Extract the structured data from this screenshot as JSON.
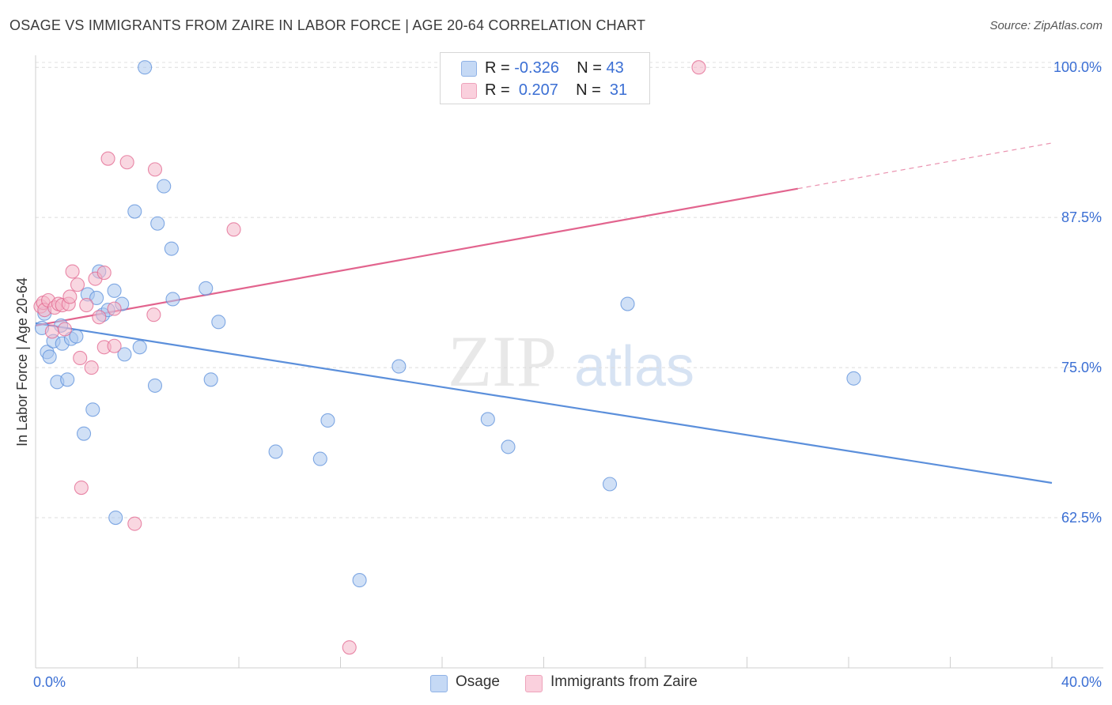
{
  "header": {
    "title": "OSAGE VS IMMIGRANTS FROM ZAIRE IN LABOR FORCE | AGE 20-64 CORRELATION CHART",
    "source": "Source: ZipAtlas.com"
  },
  "watermark": {
    "zip": "ZIP",
    "atlas": "atlas"
  },
  "legend": {
    "rows": [
      {
        "r_label": "R =",
        "r_value": "-0.326",
        "n_label": "N =",
        "n_value": "43",
        "color": "#a9c6ef"
      },
      {
        "r_label": "R =",
        "r_value": "0.207",
        "n_label": "N =",
        "n_value": "31",
        "color": "#f4b6c9"
      }
    ]
  },
  "bottom_legend": [
    {
      "label": "Osage",
      "color": "#a9c6ef"
    },
    {
      "label": "Immigrants from Zaire",
      "color": "#f4b6c9"
    }
  ],
  "chart_data": {
    "type": "scatter",
    "title": "OSAGE VS IMMIGRANTS FROM ZAIRE IN LABOR FORCE | AGE 20-64 CORRELATION CHART",
    "xlabel": "",
    "ylabel": "In Labor Force | Age 20-64",
    "xlim": [
      0,
      40
    ],
    "ylim": [
      50,
      101
    ],
    "x_tick_labels": [
      "0.0%",
      "40.0%"
    ],
    "y_ticks": [
      62.5,
      75.0,
      87.5,
      100.0
    ],
    "y_tick_labels": [
      "62.5%",
      "75.0%",
      "87.5%",
      "100.0%"
    ],
    "grid": true,
    "series": [
      {
        "name": "Osage",
        "color": "#5b8fdb",
        "fill": "#a9c6ef",
        "points": [
          [
            0.25,
            78.3
          ],
          [
            0.35,
            79.5
          ],
          [
            0.45,
            76.3
          ],
          [
            0.55,
            75.9
          ],
          [
            0.7,
            77.2
          ],
          [
            0.85,
            73.8
          ],
          [
            1.0,
            78.5
          ],
          [
            1.05,
            77.0
          ],
          [
            1.25,
            74.0
          ],
          [
            1.4,
            77.4
          ],
          [
            1.6,
            77.6
          ],
          [
            1.9,
            69.5
          ],
          [
            2.05,
            81.1
          ],
          [
            2.25,
            71.5
          ],
          [
            2.4,
            80.8
          ],
          [
            2.5,
            83.0
          ],
          [
            2.65,
            79.4
          ],
          [
            2.85,
            79.8
          ],
          [
            3.1,
            81.4
          ],
          [
            3.15,
            62.5
          ],
          [
            3.4,
            80.3
          ],
          [
            3.5,
            76.1
          ],
          [
            3.9,
            88.0
          ],
          [
            4.1,
            76.7
          ],
          [
            4.3,
            100.0
          ],
          [
            4.7,
            73.5
          ],
          [
            4.8,
            87.0
          ],
          [
            5.05,
            90.1
          ],
          [
            5.35,
            84.9
          ],
          [
            5.4,
            80.7
          ],
          [
            6.7,
            81.6
          ],
          [
            6.9,
            74.0
          ],
          [
            7.2,
            78.8
          ],
          [
            9.45,
            68.0
          ],
          [
            11.2,
            67.4
          ],
          [
            11.5,
            70.6
          ],
          [
            12.75,
            57.3
          ],
          [
            14.3,
            75.1
          ],
          [
            17.8,
            70.7
          ],
          [
            18.6,
            68.4
          ],
          [
            22.6,
            65.3
          ],
          [
            23.3,
            80.3
          ],
          [
            32.2,
            74.1
          ]
        ],
        "trend": {
          "x": [
            0,
            40
          ],
          "y": [
            78.7,
            65.4
          ]
        }
      },
      {
        "name": "Immigrants from Zaire",
        "color": "#e2648e",
        "fill": "#f4b6c9",
        "points": [
          [
            0.2,
            80.1
          ],
          [
            0.3,
            80.4
          ],
          [
            0.35,
            79.8
          ],
          [
            0.5,
            80.6
          ],
          [
            0.65,
            78.0
          ],
          [
            0.75,
            80.0
          ],
          [
            0.9,
            80.3
          ],
          [
            1.05,
            80.2
          ],
          [
            1.15,
            78.2
          ],
          [
            1.3,
            80.3
          ],
          [
            1.35,
            80.9
          ],
          [
            1.45,
            83.0
          ],
          [
            1.65,
            81.9
          ],
          [
            1.75,
            75.8
          ],
          [
            1.8,
            65.0
          ],
          [
            2.0,
            80.2
          ],
          [
            2.2,
            75.0
          ],
          [
            2.35,
            82.4
          ],
          [
            2.5,
            79.2
          ],
          [
            2.7,
            82.9
          ],
          [
            2.7,
            76.7
          ],
          [
            2.85,
            92.4
          ],
          [
            3.1,
            79.9
          ],
          [
            3.1,
            76.8
          ],
          [
            3.6,
            92.1
          ],
          [
            3.9,
            62.0
          ],
          [
            4.65,
            79.4
          ],
          [
            4.7,
            91.5
          ],
          [
            7.8,
            86.5
          ],
          [
            12.35,
            51.7
          ],
          [
            26.1,
            100.0
          ]
        ],
        "trend": {
          "x": [
            0,
            40
          ],
          "y": [
            78.5,
            93.7
          ],
          "solid_until_x": 30
        }
      }
    ]
  }
}
